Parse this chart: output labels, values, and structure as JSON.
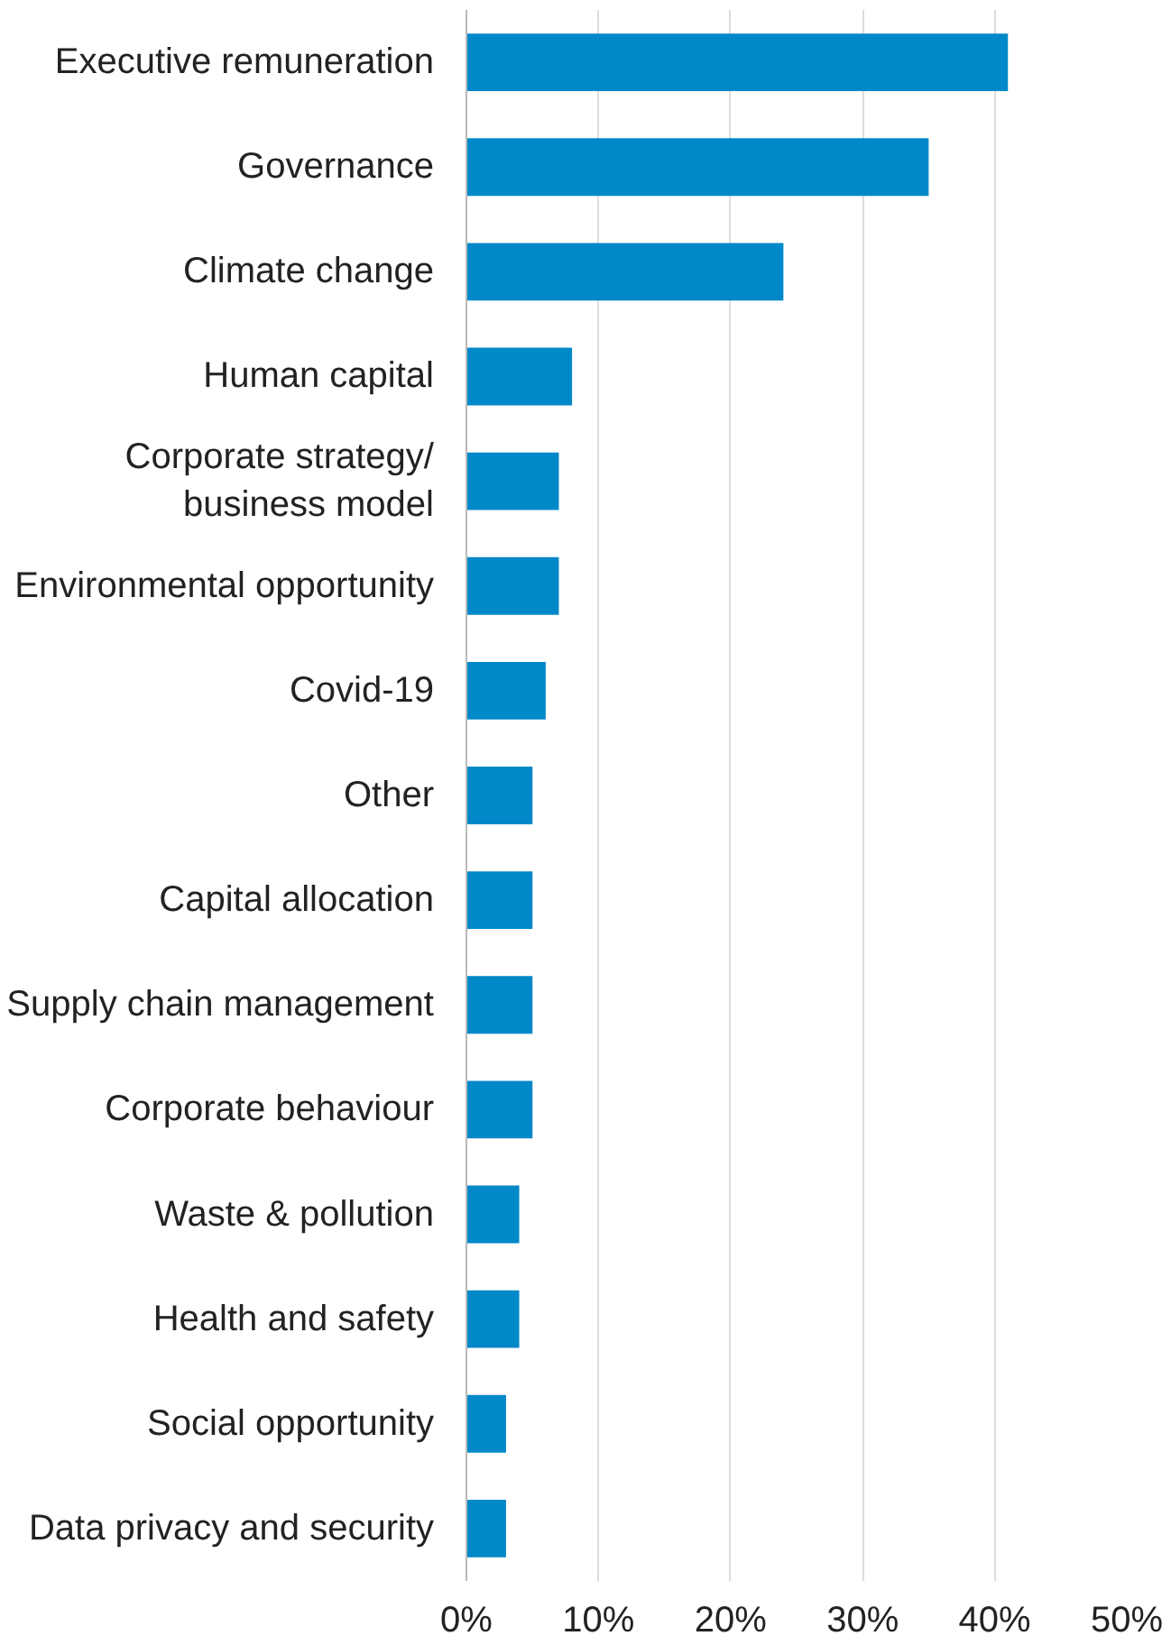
{
  "chart_data": {
    "type": "bar",
    "orientation": "horizontal",
    "categories": [
      "Executive remuneration",
      "Governance",
      "Climate change",
      "Human capital",
      "Corporate strategy/\nbusiness model",
      "Environmental opportunity",
      "Covid-19",
      "Other",
      "Capital allocation",
      "Supply chain management",
      "Corporate behaviour",
      "Waste & pollution",
      "Health and safety",
      "Social opportunity",
      "Data privacy and security"
    ],
    "values": [
      41,
      35,
      24,
      8,
      7,
      7,
      6,
      5,
      5,
      5,
      5,
      4,
      4,
      3,
      3
    ],
    "color": "#0088c9",
    "xlim": [
      0,
      50
    ],
    "xticks": [
      {
        "value": 0,
        "label": "0%"
      },
      {
        "value": 10,
        "label": "10%"
      },
      {
        "value": 20,
        "label": "20%"
      },
      {
        "value": 30,
        "label": "30%"
      },
      {
        "value": 40,
        "label": "40%"
      },
      {
        "value": 50,
        "label": "50%"
      }
    ],
    "grid": "x"
  }
}
